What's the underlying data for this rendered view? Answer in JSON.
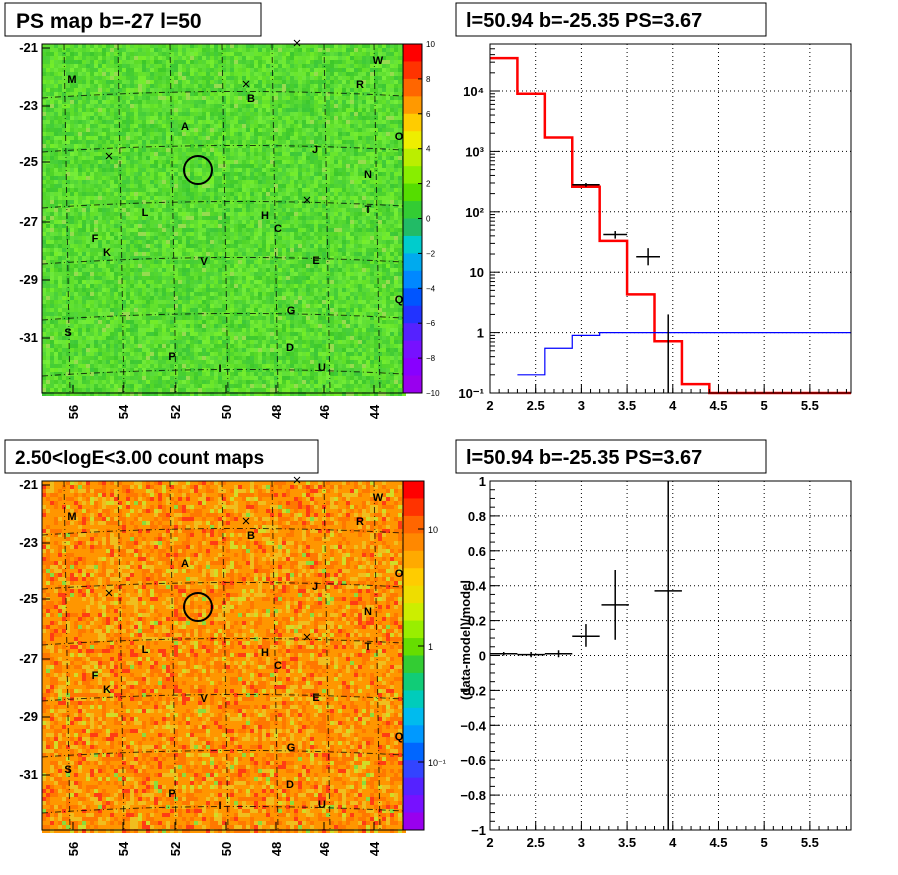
{
  "panels": {
    "tl": {
      "title": "PS map b=-27 l=50",
      "type": "heatmap",
      "palette": "green",
      "xticks": [
        "56",
        "54",
        "52",
        "50",
        "48",
        "46",
        "44"
      ],
      "yticks": [
        "-21",
        "-23",
        "-25",
        "-27",
        "-29",
        "-31"
      ],
      "colorbar_ticks": [
        "10",
        "8",
        "6",
        "4",
        "2",
        "0",
        "−2",
        "−4",
        "−6",
        "−8",
        "−10"
      ],
      "colorbar_range": [
        -10,
        10
      ]
    },
    "bl": {
      "title": "2.50<logE<3.00 count maps",
      "type": "heatmap",
      "palette": "counts",
      "xticks": [
        "56",
        "54",
        "52",
        "50",
        "48",
        "46",
        "44"
      ],
      "yticks": [
        "-21",
        "-23",
        "-25",
        "-27",
        "-29",
        "-31"
      ],
      "colorbar_ticks": [
        "10",
        "1",
        "10⁻¹"
      ],
      "colorbar_scale": "log"
    }
  },
  "sources": [
    "M",
    "B",
    "A",
    "W",
    "R",
    "O",
    "J",
    "N",
    "T",
    "L",
    "H",
    "C",
    "F",
    "K",
    "V",
    "E",
    "Q",
    "G",
    "S",
    "P",
    "D",
    "I",
    "U"
  ],
  "source_position": {
    "l": 50.94,
    "b": -25.35
  },
  "chart_data": [
    {
      "type": "histogram",
      "title": "l=50.94 b=-25.35 PS=3.67",
      "yscale": "log",
      "xlim": [
        2,
        5.95
      ],
      "ylim": [
        0.1,
        60000
      ],
      "xticks": [
        "2",
        "2.5",
        "3",
        "3.5",
        "4",
        "4.5",
        "5",
        "5.5"
      ],
      "yticks": [
        "10⁻¹",
        "1",
        "10",
        "10²",
        "10³",
        "10⁴"
      ],
      "grid": true,
      "series": [
        {
          "color": "#ff0000",
          "style": "step",
          "bins": [
            [
              2.0,
              2.3
            ],
            [
              2.3,
              2.6
            ],
            [
              2.6,
              2.9
            ],
            [
              2.9,
              3.2
            ],
            [
              3.2,
              3.5
            ],
            [
              3.5,
              3.8
            ],
            [
              3.8,
              4.1
            ],
            [
              4.1,
              4.4
            ],
            [
              4.4,
              5.95
            ]
          ],
          "values": [
            35000,
            9000,
            1700,
            260,
            33,
            4.3,
            0.72,
            0.14,
            0.1
          ]
        },
        {
          "color": "#0000ff",
          "style": "step",
          "bins": [
            [
              2.3,
              2.6
            ],
            [
              2.6,
              2.9
            ],
            [
              2.9,
              3.2
            ],
            [
              3.2,
              3.5
            ],
            [
              3.5,
              3.8
            ],
            [
              3.8,
              5.95
            ]
          ],
          "values": [
            0.2,
            0.55,
            0.9,
            1.0,
            1.0,
            1.0
          ]
        },
        {
          "color": "#000000",
          "style": "errorbar",
          "points": [
            {
              "x": 3.05,
              "xerr": 0.15,
              "y": 280,
              "ylo": 260,
              "yhi": 300
            },
            {
              "x": 3.37,
              "xerr": 0.13,
              "y": 42,
              "ylo": 36,
              "yhi": 48
            },
            {
              "x": 3.73,
              "xerr": 0.13,
              "y": 18,
              "ylo": 13,
              "yhi": 25
            },
            {
              "x": 3.95,
              "xerr": 0.0,
              "y": 0.1,
              "ylo": 0.1,
              "yhi": 2.0
            }
          ]
        }
      ]
    },
    {
      "type": "scatter",
      "title": "l=50.94 b=-25.35 PS=3.67",
      "ylabel": "(data-model)/model",
      "xlim": [
        2,
        5.95
      ],
      "ylim": [
        -1,
        1
      ],
      "xticks": [
        "2",
        "2.5",
        "3",
        "3.5",
        "4",
        "4.5",
        "5",
        "5.5"
      ],
      "yticks": [
        "−1",
        "−0.8",
        "−0.6",
        "−0.4",
        "−0.2",
        "0",
        "0.2",
        "0.4",
        "0.6",
        "0.8",
        "1"
      ],
      "grid": true,
      "points": [
        {
          "x": 2.15,
          "xerr": 0.15,
          "y": 0.01,
          "ylo": 0.0,
          "yhi": 0.02
        },
        {
          "x": 2.45,
          "xerr": 0.15,
          "y": 0.005,
          "ylo": -0.01,
          "yhi": 0.02
        },
        {
          "x": 2.75,
          "xerr": 0.15,
          "y": 0.01,
          "ylo": -0.01,
          "yhi": 0.03
        },
        {
          "x": 3.05,
          "xerr": 0.15,
          "y": 0.11,
          "ylo": 0.05,
          "yhi": 0.18
        },
        {
          "x": 3.37,
          "xerr": 0.15,
          "y": 0.29,
          "ylo": 0.09,
          "yhi": 0.49
        },
        {
          "x": 3.95,
          "xerr": 0.15,
          "y": 0.37,
          "ylo": -1.0,
          "yhi": 1.0
        }
      ]
    }
  ]
}
